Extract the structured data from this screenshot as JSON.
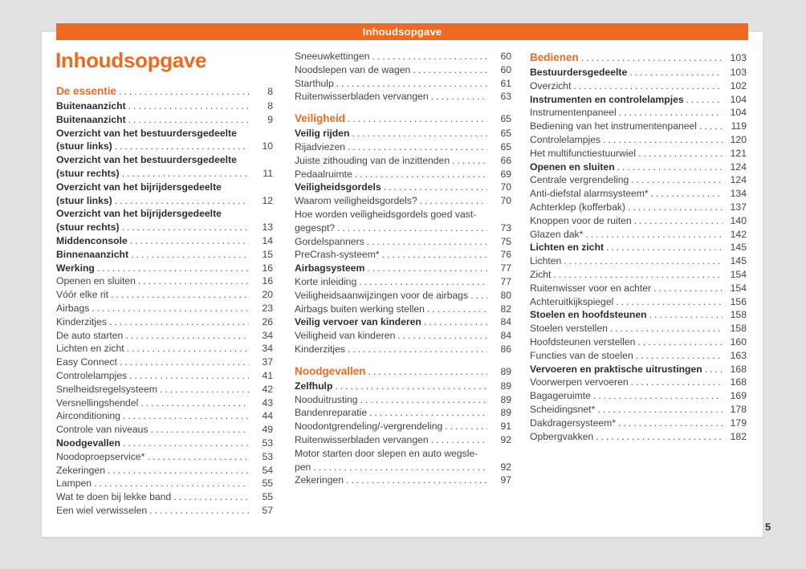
{
  "header": {
    "bar_label": "Inhoudsopgave"
  },
  "title": "Inhoudsopgave",
  "folio": "5",
  "colors": {
    "accent": "#ED6B21",
    "background": "#E2E2E2",
    "paper": "#FFFFFF",
    "body_text": "#444444"
  },
  "columns": [
    {
      "entries": [
        {
          "label": "De essentie",
          "page": "8",
          "style": "section"
        },
        {
          "label": "Buitenaanzicht",
          "page": "8",
          "style": "bold"
        },
        {
          "label": "Buitenaanzicht",
          "page": "9",
          "style": "bold"
        },
        {
          "label": "Overzicht van het bestuurdersgedeelte",
          "label2": "(stuur links)",
          "page": "10",
          "style": "bold"
        },
        {
          "label": "Overzicht van het bestuurdersgedeelte",
          "label2": "(stuur rechts)",
          "page": "11",
          "style": "bold"
        },
        {
          "label": "Overzicht van het bijrijdersgedeelte",
          "label2": "(stuur links)",
          "page": "12",
          "style": "bold"
        },
        {
          "label": "Overzicht van het bijrijdersgedeelte",
          "label2": "(stuur rechts)",
          "page": "13",
          "style": "bold"
        },
        {
          "label": "Middenconsole",
          "page": "14",
          "style": "bold"
        },
        {
          "label": "Binnenaanzicht",
          "page": "15",
          "style": "bold"
        },
        {
          "label": "Werking",
          "page": "16",
          "style": "bold"
        },
        {
          "label": "Openen en sluiten",
          "page": "16"
        },
        {
          "label": "Vóór elke rit",
          "page": "20"
        },
        {
          "label": "Airbags",
          "page": "23"
        },
        {
          "label": "Kinderzitjes",
          "page": "26"
        },
        {
          "label": "De auto starten",
          "page": "34"
        },
        {
          "label": "Lichten en zicht",
          "page": "34"
        },
        {
          "label": "Easy Connect",
          "page": "37"
        },
        {
          "label": "Controlelampjes",
          "page": "41"
        },
        {
          "label": "Snelheidsregelsysteem",
          "page": "42"
        },
        {
          "label": "Versnellingshendel",
          "page": "43"
        },
        {
          "label": "Airconditioning",
          "page": "44"
        },
        {
          "label": "Controle van niveaus",
          "page": "49"
        },
        {
          "label": "Noodgevallen",
          "page": "53",
          "style": "bold"
        },
        {
          "label": "Noodoproepservice*",
          "page": "53"
        },
        {
          "label": "Zekeringen",
          "page": "54"
        },
        {
          "label": "Lampen",
          "page": "55"
        },
        {
          "label": "Wat te doen bij lekke band",
          "page": "55"
        },
        {
          "label": "Een wiel verwisselen",
          "page": "57"
        }
      ]
    },
    {
      "entries": [
        {
          "label": "Sneeuwkettingen",
          "page": "60"
        },
        {
          "label": "Noodslepen van de wagen",
          "page": "60"
        },
        {
          "label": "Starthulp",
          "page": "61"
        },
        {
          "label": "Ruitenwisserbladen vervangen",
          "page": "63"
        },
        {
          "label": "Veiligheid",
          "page": "65",
          "style": "section",
          "gap": true
        },
        {
          "label": "Veilig rijden",
          "page": "65",
          "style": "bold"
        },
        {
          "label": "Rijadviezen",
          "page": "65"
        },
        {
          "label": "Juiste zithouding van de inzittenden",
          "page": "66"
        },
        {
          "label": "Pedaalruimte",
          "page": "69"
        },
        {
          "label": "Veiligheidsgordels",
          "page": "70",
          "style": "bold"
        },
        {
          "label": "Waarom veiligheidsgordels?",
          "page": "70"
        },
        {
          "label": "Hoe worden veiligheidsgordels goed vast-",
          "label2": "gegespt?",
          "page": "73"
        },
        {
          "label": "Gordelspanners",
          "page": "75"
        },
        {
          "label": "PreCrash-systeem*",
          "page": "76"
        },
        {
          "label": "Airbagsysteem",
          "page": "77",
          "style": "bold"
        },
        {
          "label": "Korte inleiding",
          "page": "77"
        },
        {
          "label": "Veiligheidsaanwijzingen voor de airbags",
          "page": "80"
        },
        {
          "label": "Airbags buiten werking stellen",
          "page": "82"
        },
        {
          "label": "Veilig vervoer van kinderen",
          "page": "84",
          "style": "bold"
        },
        {
          "label": "Veiligheid van kinderen",
          "page": "84"
        },
        {
          "label": "Kinderzitjes",
          "page": "86"
        },
        {
          "label": "Noodgevallen",
          "page": "89",
          "style": "section",
          "gap": true
        },
        {
          "label": "Zelfhulp",
          "page": "89",
          "style": "bold"
        },
        {
          "label": "Nooduitrusting",
          "page": "89"
        },
        {
          "label": "Bandenreparatie",
          "page": "89"
        },
        {
          "label": "Noodontgrendeling/-vergrendeling",
          "page": "91"
        },
        {
          "label": "Ruitenwisserbladen vervangen",
          "page": "92"
        },
        {
          "label": "Motor starten door slepen en auto wegsle-",
          "label2": "pen",
          "page": "92"
        },
        {
          "label": "Zekeringen",
          "page": "97"
        }
      ]
    },
    {
      "entries": [
        {
          "label": "Bedienen",
          "page": "103",
          "style": "section"
        },
        {
          "label": "Bestuurdersgedeelte",
          "page": "103",
          "style": "bold"
        },
        {
          "label": "Overzicht",
          "page": "102"
        },
        {
          "label": "Instrumenten en controlelampjes",
          "page": "104",
          "style": "bold"
        },
        {
          "label": "Instrumentenpaneel",
          "page": "104"
        },
        {
          "label": "Bediening van het instrumentenpaneel",
          "page": "119"
        },
        {
          "label": "Controlelampjes",
          "page": "120"
        },
        {
          "label": "Het multifunctiestuurwiel",
          "page": "121"
        },
        {
          "label": "Openen en sluiten",
          "page": "124",
          "style": "bold"
        },
        {
          "label": "Centrale vergrendeling",
          "page": "124"
        },
        {
          "label": "Anti-diefstal alarmsysteem*",
          "page": "134"
        },
        {
          "label": "Achterklep (kofferbak)",
          "page": "137"
        },
        {
          "label": "Knoppen voor de ruiten",
          "page": "140"
        },
        {
          "label": "Glazen dak*",
          "page": "142"
        },
        {
          "label": "Lichten en zicht",
          "page": "145",
          "style": "bold"
        },
        {
          "label": "Lichten",
          "page": "145"
        },
        {
          "label": "Zicht",
          "page": "154"
        },
        {
          "label": "Ruitenwisser voor en achter",
          "page": "154"
        },
        {
          "label": "Achteruitkijkspiegel",
          "page": "156"
        },
        {
          "label": "Stoelen en hoofdsteunen",
          "page": "158",
          "style": "bold"
        },
        {
          "label": "Stoelen verstellen",
          "page": "158"
        },
        {
          "label": "Hoofdsteunen verstellen",
          "page": "160"
        },
        {
          "label": "Functies van de stoelen",
          "page": "163"
        },
        {
          "label": "Vervoeren en praktische uitrustingen",
          "page": "168",
          "style": "bold"
        },
        {
          "label": "Voorwerpen vervoeren",
          "page": "168"
        },
        {
          "label": "Bagageruimte",
          "page": "169"
        },
        {
          "label": "Scheidingsnet*",
          "page": "178"
        },
        {
          "label": "Dakdragersysteem*",
          "page": "179"
        },
        {
          "label": "Opbergvakken",
          "page": "182"
        }
      ]
    }
  ]
}
